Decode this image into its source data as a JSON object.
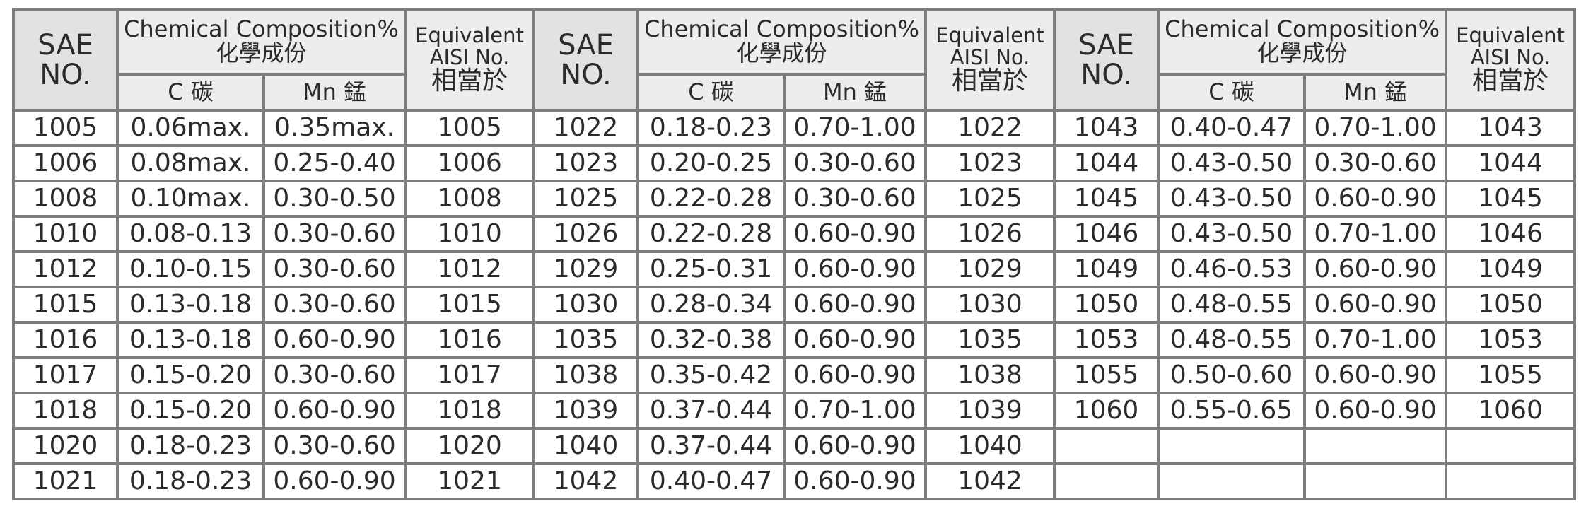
{
  "groups": [
    {
      "header": {
        "sae": [
          "SAE",
          "NO."
        ],
        "composition": [
          "Chemical Composition%",
          "化學成份"
        ],
        "c": "C 碳",
        "mn": "Mn 錳",
        "equivalent": [
          "Equivalent",
          "AISI No.",
          "相當於"
        ]
      },
      "rows": [
        [
          "1005",
          "0.06max.",
          "0.35max.",
          "1005"
        ],
        [
          "1006",
          "0.08max.",
          "0.25-0.40",
          "1006"
        ],
        [
          "1008",
          "0.10max.",
          "0.30-0.50",
          "1008"
        ],
        [
          "1010",
          "0.08-0.13",
          "0.30-0.60",
          "1010"
        ],
        [
          "1012",
          "0.10-0.15",
          "0.30-0.60",
          "1012"
        ],
        [
          "1015",
          "0.13-0.18",
          "0.30-0.60",
          "1015"
        ],
        [
          "1016",
          "0.13-0.18",
          "0.60-0.90",
          "1016"
        ],
        [
          "1017",
          "0.15-0.20",
          "0.30-0.60",
          "1017"
        ],
        [
          "1018",
          "0.15-0.20",
          "0.60-0.90",
          "1018"
        ],
        [
          "1020",
          "0.18-0.23",
          "0.30-0.60",
          "1020"
        ],
        [
          "1021",
          "0.18-0.23",
          "0.60-0.90",
          "1021"
        ]
      ]
    },
    {
      "header": {
        "sae": [
          "SAE",
          "NO."
        ],
        "composition": [
          "Chemical Composition%",
          "化學成份"
        ],
        "c": "C 碳",
        "mn": "Mn 錳",
        "equivalent": [
          "Equivalent",
          "AISI No.",
          "相當於"
        ]
      },
      "rows": [
        [
          "1022",
          "0.18-0.23",
          "0.70-1.00",
          "1022"
        ],
        [
          "1023",
          "0.20-0.25",
          "0.30-0.60",
          "1023"
        ],
        [
          "1025",
          "0.22-0.28",
          "0.30-0.60",
          "1025"
        ],
        [
          "1026",
          "0.22-0.28",
          "0.60-0.90",
          "1026"
        ],
        [
          "1029",
          "0.25-0.31",
          "0.60-0.90",
          "1029"
        ],
        [
          "1030",
          "0.28-0.34",
          "0.60-0.90",
          "1030"
        ],
        [
          "1035",
          "0.32-0.38",
          "0.60-0.90",
          "1035"
        ],
        [
          "1038",
          "0.35-0.42",
          "0.60-0.90",
          "1038"
        ],
        [
          "1039",
          "0.37-0.44",
          "0.70-1.00",
          "1039"
        ],
        [
          "1040",
          "0.37-0.44",
          "0.60-0.90",
          "1040"
        ],
        [
          "1042",
          "0.40-0.47",
          "0.60-0.90",
          "1042"
        ]
      ]
    },
    {
      "header": {
        "sae": [
          "SAE",
          "NO."
        ],
        "composition": [
          "Chemical Composition%",
          "化學成份"
        ],
        "c": "C 碳",
        "mn": "Mn 錳",
        "equivalent": [
          "Equivalent",
          "AISI No.",
          "相當於"
        ]
      },
      "rows": [
        [
          "1043",
          "0.40-0.47",
          "0.70-1.00",
          "1043"
        ],
        [
          "1044",
          "0.43-0.50",
          "0.30-0.60",
          "1044"
        ],
        [
          "1045",
          "0.43-0.50",
          "0.60-0.90",
          "1045"
        ],
        [
          "1046",
          "0.43-0.50",
          "0.70-1.00",
          "1046"
        ],
        [
          "1049",
          "0.46-0.53",
          "0.60-0.90",
          "1049"
        ],
        [
          "1050",
          "0.48-0.55",
          "0.60-0.90",
          "1050"
        ],
        [
          "1053",
          "0.48-0.55",
          "0.70-1.00",
          "1053"
        ],
        [
          "1055",
          "0.50-0.60",
          "0.60-0.90",
          "1055"
        ],
        [
          "1060",
          "0.55-0.65",
          "0.60-0.90",
          "1060"
        ]
      ]
    }
  ]
}
